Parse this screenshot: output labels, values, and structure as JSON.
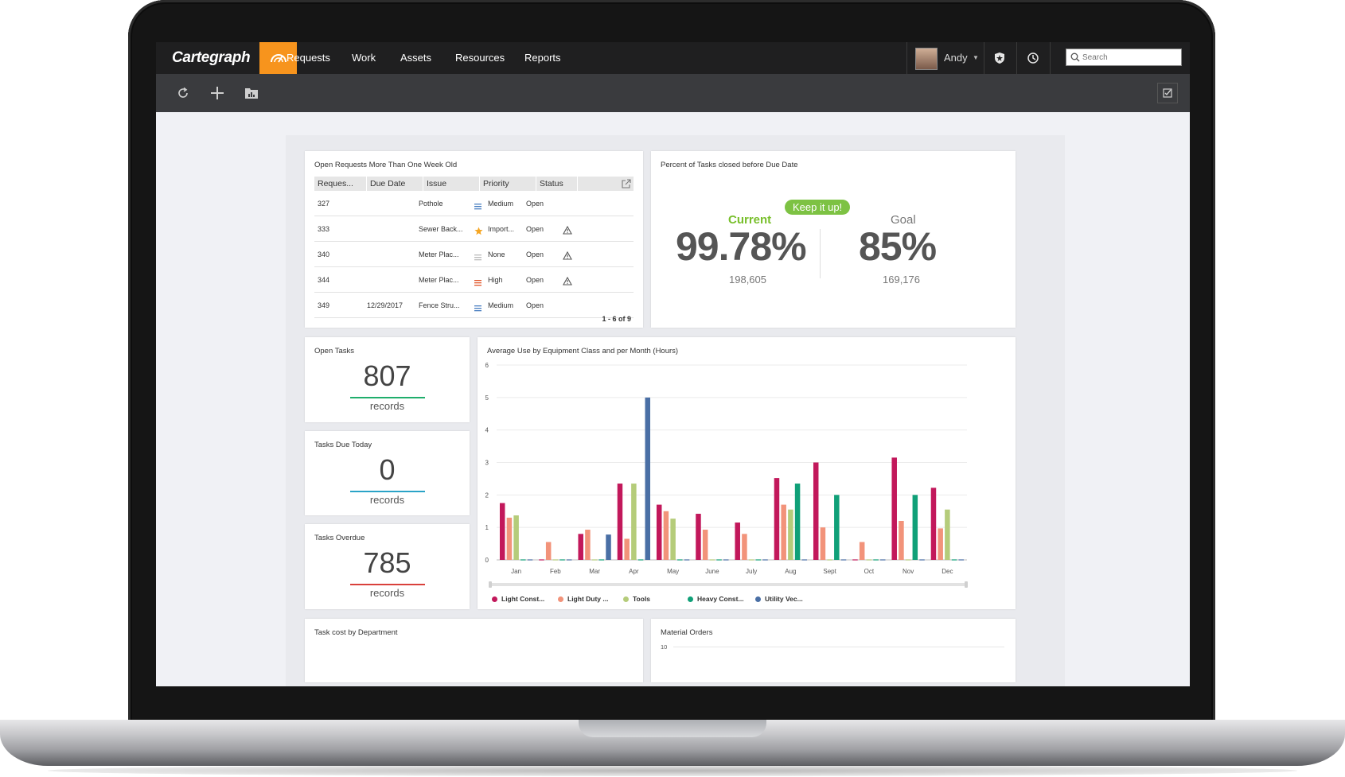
{
  "app": {
    "brand": "Cartegraph"
  },
  "nav": {
    "items": [
      "Requests",
      "Work",
      "Assets",
      "Resources",
      "Reports"
    ]
  },
  "user": {
    "name": "Andy"
  },
  "search": {
    "placeholder": "Search"
  },
  "cards": {
    "open_requests": {
      "title": "Open Requests More Than One Week Old",
      "columns": [
        "Reques...",
        "Due Date",
        "Issue",
        "Priority",
        "Status"
      ],
      "rows": [
        {
          "id": "327",
          "due": "",
          "issue": "Pothole",
          "priority": "Medium",
          "priority_icon": "bars-blue",
          "status": "Open",
          "alert": false
        },
        {
          "id": "333",
          "due": "",
          "issue": "Sewer Back...",
          "priority": "Import...",
          "priority_icon": "star-orange",
          "status": "Open",
          "alert": true
        },
        {
          "id": "340",
          "due": "",
          "issue": "Meter Plac...",
          "priority": "None",
          "priority_icon": "bars-gray",
          "status": "Open",
          "alert": true
        },
        {
          "id": "344",
          "due": "",
          "issue": "Meter Plac...",
          "priority": "High",
          "priority_icon": "bars-red",
          "status": "Open",
          "alert": true
        },
        {
          "id": "349",
          "due": "12/29/2017",
          "issue": "Fence Stru...",
          "priority": "Medium",
          "priority_icon": "bars-blue",
          "status": "Open",
          "alert": false
        }
      ],
      "pager": "1 - 6 of 9"
    },
    "percent_closed": {
      "title": "Percent of Tasks closed before Due Date",
      "current_label": "Current",
      "current_value": "99.78%",
      "current_count": "198,605",
      "badge": "Keep it up!",
      "goal_label": "Goal",
      "goal_value": "85%",
      "goal_count": "169,176",
      "colors": {
        "current": "#78bf2b",
        "goal": "#777777",
        "badge": "#7dc243"
      }
    },
    "kpis": [
      {
        "title": "Open Tasks",
        "value": "807",
        "unit": "records",
        "accent": "#1fae6c"
      },
      {
        "title": "Tasks Due Today",
        "value": "0",
        "unit": "records",
        "accent": "#2aa3c7"
      },
      {
        "title": "Tasks Overdue",
        "value": "785",
        "unit": "records",
        "accent": "#d9403b"
      }
    ],
    "task_cost": {
      "title": "Task cost by Department"
    },
    "material_orders": {
      "title": "Material Orders",
      "first_tick": "10"
    }
  },
  "chart_data": {
    "type": "bar",
    "title": "Average Use by Equipment Class and per Month (Hours)",
    "categories": [
      "Jan",
      "Feb",
      "Mar",
      "Apr",
      "May",
      "June",
      "July",
      "Aug",
      "Sept",
      "Oct",
      "Nov",
      "Dec"
    ],
    "ylim": [
      0,
      6
    ],
    "yticks": [
      "0",
      "1",
      "2",
      "3",
      "4",
      "5",
      "6"
    ],
    "grid": true,
    "legend_position": "bottom",
    "series": [
      {
        "name": "Light Const...",
        "color": "#c2185b",
        "values": [
          1.75,
          0,
          0.8,
          2.35,
          1.7,
          1.42,
          1.15,
          2.52,
          3.0,
          0,
          3.15,
          2.22
        ]
      },
      {
        "name": "Light Duty ...",
        "color": "#f2937a",
        "values": [
          1.3,
          0.55,
          0.93,
          0.65,
          1.5,
          0.93,
          0.8,
          1.7,
          1.0,
          0.55,
          1.2,
          0.97
        ]
      },
      {
        "name": "Tools",
        "color": "#b5cc7a",
        "values": [
          1.37,
          0,
          0,
          2.35,
          1.27,
          0,
          0,
          1.55,
          0,
          0,
          0,
          1.55
        ]
      },
      {
        "name": "Heavy Const...",
        "color": "#10a078",
        "values": [
          0,
          0,
          0,
          0,
          0,
          0,
          0,
          2.35,
          2.0,
          0,
          2.0,
          0
        ]
      },
      {
        "name": "Utility Vec...",
        "color": "#4a6fa5",
        "values": [
          0,
          0,
          0.78,
          5.0,
          0,
          0,
          0,
          0,
          0,
          0,
          0,
          0
        ]
      }
    ]
  }
}
